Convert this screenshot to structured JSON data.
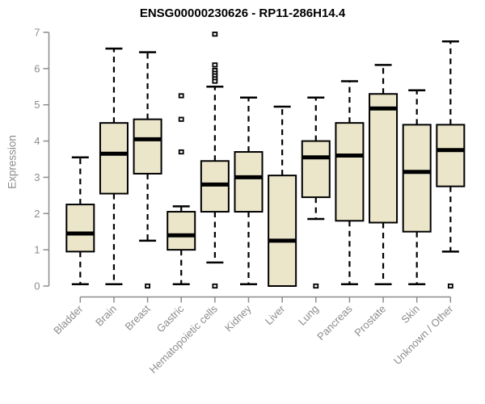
{
  "title": "ENSG00000230626 - RP11-286H14.4",
  "chart_data": {
    "type": "boxplot",
    "title": "ENSG00000230626 - RP11-286H14.4",
    "xlabel": "",
    "ylabel": "Expression",
    "ylim": [
      0,
      7
    ],
    "yticks": [
      0,
      1,
      2,
      3,
      4,
      5,
      6,
      7
    ],
    "grid": false,
    "legend_position": "none",
    "categories": [
      "Bladder",
      "Brain",
      "Breast",
      "Gastric",
      "Hematopoietic cells",
      "Kidney",
      "Liver",
      "Lung",
      "Pancreas",
      "Prostate",
      "Skin",
      "Unknown / Other"
    ],
    "series": [
      {
        "category": "Bladder",
        "low": 0.05,
        "q1": 0.95,
        "median": 1.45,
        "q3": 2.25,
        "high": 3.55,
        "outliers": []
      },
      {
        "category": "Brain",
        "low": 0.05,
        "q1": 2.55,
        "median": 3.65,
        "q3": 4.5,
        "high": 6.55,
        "outliers": []
      },
      {
        "category": "Breast",
        "low": 1.25,
        "q1": 3.1,
        "median": 4.05,
        "q3": 4.6,
        "high": 6.45,
        "outliers": [
          0
        ]
      },
      {
        "category": "Gastric",
        "low": 0.05,
        "q1": 1.0,
        "median": 1.4,
        "q3": 2.05,
        "high": 2.2,
        "outliers": [
          3.7,
          4.6,
          5.25
        ]
      },
      {
        "category": "Hematopoietic cells",
        "low": 0.65,
        "q1": 2.05,
        "median": 2.8,
        "q3": 3.45,
        "high": 5.5,
        "outliers": [
          6.95,
          6.1,
          5.95,
          5.87,
          5.8,
          5.72,
          5.65,
          0
        ]
      },
      {
        "category": "Kidney",
        "low": 0.05,
        "q1": 2.05,
        "median": 3.0,
        "q3": 3.7,
        "high": 5.2,
        "outliers": []
      },
      {
        "category": "Liver",
        "low": 0.0,
        "q1": 0.0,
        "median": 1.25,
        "q3": 3.05,
        "high": 4.95,
        "outliers": []
      },
      {
        "category": "Lung",
        "low": 1.85,
        "q1": 2.45,
        "median": 3.55,
        "q3": 4.0,
        "high": 5.2,
        "outliers": [
          0
        ]
      },
      {
        "category": "Pancreas",
        "low": 0.05,
        "q1": 1.8,
        "median": 3.6,
        "q3": 4.5,
        "high": 5.65,
        "outliers": []
      },
      {
        "category": "Prostate",
        "low": 0.05,
        "q1": 1.75,
        "median": 4.9,
        "q3": 5.3,
        "high": 6.1,
        "outliers": []
      },
      {
        "category": "Skin",
        "low": 0.05,
        "q1": 1.5,
        "median": 3.15,
        "q3": 4.45,
        "high": 5.4,
        "outliers": []
      },
      {
        "category": "Unknown / Other",
        "low": 0.95,
        "q1": 2.75,
        "median": 3.75,
        "q3": 4.45,
        "high": 6.75,
        "outliers": [
          0
        ]
      }
    ],
    "colors": {
      "box_fill": "#ebe6ca",
      "box_stroke": "#000000",
      "median": "#000000",
      "whisker": "#000000",
      "outlier_stroke": "#000000",
      "outlier_fill": "#ffffff",
      "axis": "#8c8c8c",
      "tick_label": "#8c8c8c",
      "title": "#000000"
    }
  }
}
